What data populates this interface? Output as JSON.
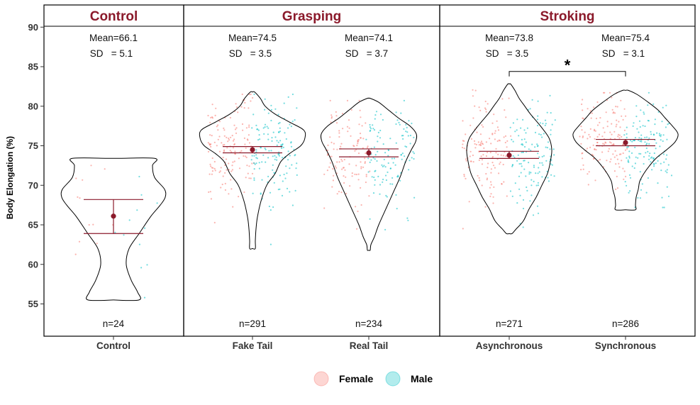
{
  "colors": {
    "accent": "#8B1A2B",
    "female": "#F8766D",
    "male": "#00BFC4",
    "panel_border": "#000000"
  },
  "chart_data": {
    "type": "violin",
    "ylabel": "Body Elongation (%)",
    "ylim": [
      51,
      93
    ],
    "yticks": [
      55,
      60,
      65,
      70,
      75,
      80,
      85,
      90
    ],
    "legend": {
      "placement": "bottom",
      "entries": [
        {
          "label": "Female",
          "color": "#F8766D"
        },
        {
          "label": "Male",
          "color": "#00BFC4"
        }
      ]
    },
    "panels": [
      {
        "title": "Control",
        "groups": [
          "Control"
        ]
      },
      {
        "title": "Grasping",
        "groups": [
          "Fake Tail",
          "Real Tail"
        ]
      },
      {
        "title": "Stroking",
        "groups": [
          "Asynchronous",
          "Synchronous"
        ]
      }
    ],
    "groups": [
      {
        "name": "Control",
        "mean": 66.1,
        "sd": 5.1,
        "n": 24,
        "mean_label": "Mean=66.1",
        "sd_label": "SD   = 5.1",
        "n_label": "n=24",
        "error_bar": [
          63.9,
          68.2
        ],
        "range": [
          55.5,
          73.4
        ]
      },
      {
        "name": "Fake Tail",
        "mean": 74.5,
        "sd": 3.5,
        "n": 291,
        "mean_label": "Mean=74.5",
        "sd_label": "SD   = 3.5",
        "n_label": "n=291",
        "error_bar": [
          74.1,
          74.9
        ],
        "range": [
          62.0,
          81.8
        ]
      },
      {
        "name": "Real Tail",
        "mean": 74.1,
        "sd": 3.7,
        "n": 234,
        "mean_label": "Mean=74.1",
        "sd_label": "SD   = 3.7",
        "n_label": "n=234",
        "error_bar": [
          73.6,
          74.6
        ],
        "range": [
          61.8,
          81.0
        ]
      },
      {
        "name": "Asynchronous",
        "mean": 73.8,
        "sd": 3.5,
        "n": 271,
        "mean_label": "Mean=73.8",
        "sd_label": "SD   = 3.5",
        "n_label": "n=271",
        "error_bar": [
          73.4,
          74.3
        ],
        "range": [
          63.9,
          82.8
        ]
      },
      {
        "name": "Synchronous",
        "mean": 75.4,
        "sd": 3.1,
        "n": 286,
        "mean_label": "Mean=75.4",
        "sd_label": "SD   = 3.1",
        "n_label": "n=286",
        "error_bar": [
          75.0,
          75.8
        ],
        "range": [
          66.9,
          82.0
        ]
      }
    ],
    "annotations": [
      {
        "type": "significance",
        "text": "*",
        "between": [
          "Asynchronous",
          "Synchronous"
        ],
        "y": 84.4
      }
    ],
    "grid": false
  }
}
